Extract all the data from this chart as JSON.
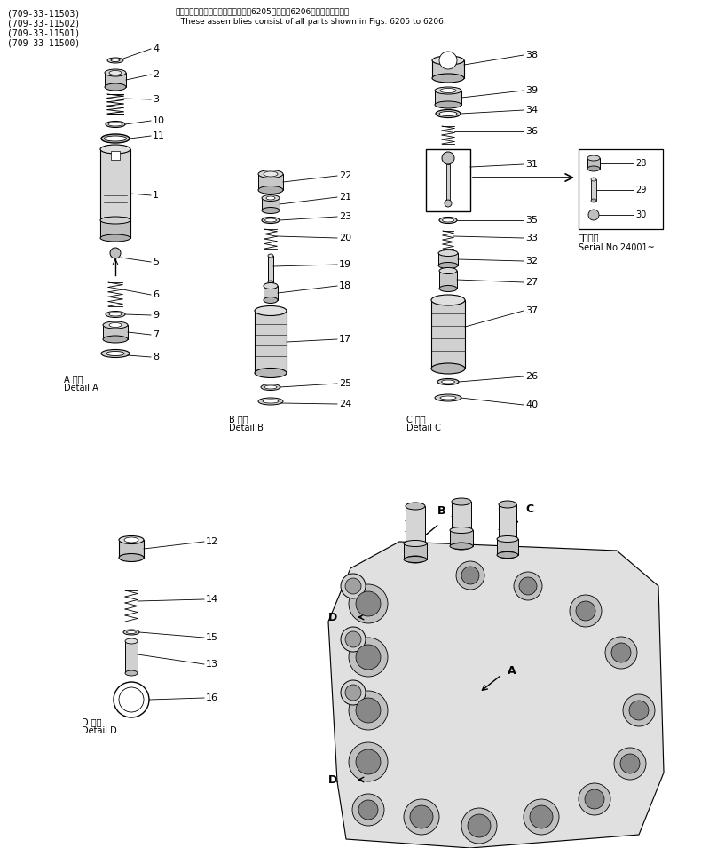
{
  "bg_color": "#ffffff",
  "line_color": "#000000",
  "header_lines": [
    "(709-33-11503)",
    "(709-33-11502)",
    "(709-33-11501)",
    "(709-33-11500)"
  ],
  "header_text_jp": "これらのアセンブリの構成部品は囶6205図から囶6206図まで含みます。",
  "header_text_en": ": These assemblies consist of all parts shown in Figs. 6205 to 6206.",
  "detail_a_label_jp": "A 詳細",
  "detail_a_label_en": "Detail A",
  "detail_b_label_jp": "B 詳細",
  "detail_b_label_en": "Detail B",
  "detail_c_label_jp": "C 詳細",
  "detail_c_label_en": "Detail C",
  "detail_d_label_jp": "D 詳細",
  "detail_d_label_en": "Detail D",
  "serial_label_jp": "適用番号",
  "serial_label_en": "Serial No.24001~",
  "fig_width": 7.9,
  "fig_height": 9.55,
  "dpi": 100
}
